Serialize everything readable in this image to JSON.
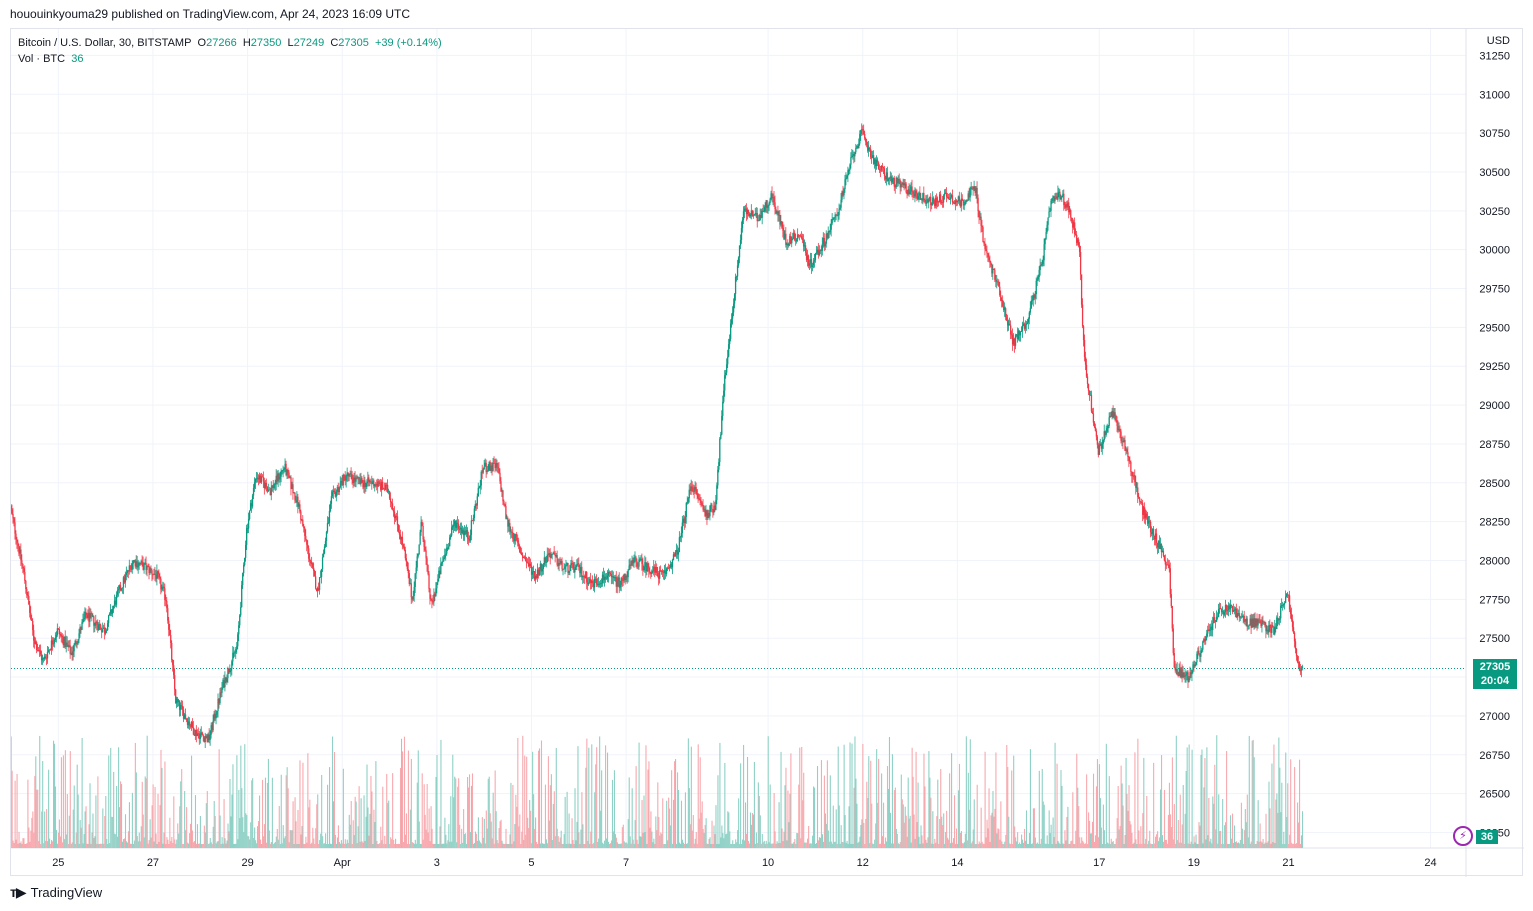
{
  "header": {
    "published_text": "hououinkyouma29 published on TradingView.com, Apr 24, 2023 16:09 UTC"
  },
  "legend": {
    "symbol": "Bitcoin / U.S. Dollar, 30, BITSTAMP",
    "o_label": "O",
    "o_value": "27266",
    "h_label": "H",
    "h_value": "27350",
    "l_label": "L",
    "l_value": "27249",
    "c_label": "C",
    "c_value": "27305",
    "change": "+39 (+0.14%)",
    "vol_label": "Vol · BTC",
    "vol_value": "36"
  },
  "price_badge": {
    "price": "27305",
    "countdown": "20:04"
  },
  "volume_badge": "36",
  "footer": {
    "brand": "TradingView",
    "logo": "tradingview-logo-icon"
  },
  "colors": {
    "up": "#089981",
    "down": "#f23645",
    "vol_up": "#8fd1c6",
    "vol_down": "#f7a9ae",
    "grid": "#f0f3fa"
  },
  "chart_data": {
    "type": "candlestick",
    "interval": "30",
    "exchange": "BITSTAMP",
    "currency_label": "USD",
    "y_ticks": [
      26250,
      26500,
      26750,
      27000,
      27250,
      27500,
      27750,
      28000,
      28250,
      28500,
      28750,
      29000,
      29250,
      29500,
      29750,
      30000,
      30250,
      30500,
      30750,
      31000,
      31250
    ],
    "ylim": [
      26150,
      31420
    ],
    "x_ticks": [
      {
        "label": "25",
        "d": 25.5
      },
      {
        "label": "27",
        "d": 27.5
      },
      {
        "label": "29",
        "d": 29.5
      },
      {
        "label": "Apr",
        "d": 31.5
      },
      {
        "label": "3",
        "d": 33.5
      },
      {
        "label": "5",
        "d": 35.5
      },
      {
        "label": "7",
        "d": 37.5
      },
      {
        "label": "10",
        "d": 40.5
      },
      {
        "label": "12",
        "d": 42.5
      },
      {
        "label": "14",
        "d": 44.5
      },
      {
        "label": "17",
        "d": 47.5
      },
      {
        "label": "19",
        "d": 49.5
      },
      {
        "label": "21",
        "d": 51.5
      },
      {
        "label": "24",
        "d": 54.5
      }
    ],
    "last_price": 27305,
    "price_path": [
      [
        24.5,
        28350
      ],
      [
        24.8,
        27900
      ],
      [
        25.0,
        27500
      ],
      [
        25.2,
        27350
      ],
      [
        25.5,
        27550
      ],
      [
        25.8,
        27400
      ],
      [
        26.1,
        27650
      ],
      [
        26.5,
        27550
      ],
      [
        26.8,
        27800
      ],
      [
        27.1,
        28000
      ],
      [
        27.4,
        27950
      ],
      [
        27.6,
        27900
      ],
      [
        27.8,
        27750
      ],
      [
        28.0,
        27100
      ],
      [
        28.4,
        26900
      ],
      [
        28.7,
        26850
      ],
      [
        29.0,
        27200
      ],
      [
        29.3,
        27450
      ],
      [
        29.5,
        28200
      ],
      [
        29.7,
        28550
      ],
      [
        30.0,
        28450
      ],
      [
        30.3,
        28600
      ],
      [
        30.6,
        28350
      ],
      [
        30.8,
        28050
      ],
      [
        31.0,
        27800
      ],
      [
        31.3,
        28400
      ],
      [
        31.6,
        28550
      ],
      [
        31.9,
        28500
      ],
      [
        32.2,
        28500
      ],
      [
        32.5,
        28450
      ],
      [
        32.8,
        28100
      ],
      [
        33.0,
        27750
      ],
      [
        33.2,
        28250
      ],
      [
        33.4,
        27700
      ],
      [
        33.6,
        27950
      ],
      [
        33.9,
        28250
      ],
      [
        34.2,
        28150
      ],
      [
        34.5,
        28600
      ],
      [
        34.8,
        28600
      ],
      [
        35.0,
        28250
      ],
      [
        35.3,
        28050
      ],
      [
        35.6,
        27900
      ],
      [
        35.9,
        28050
      ],
      [
        36.2,
        27950
      ],
      [
        36.5,
        27950
      ],
      [
        36.8,
        27850
      ],
      [
        37.1,
        27900
      ],
      [
        37.4,
        27850
      ],
      [
        37.7,
        28000
      ],
      [
        38.0,
        27950
      ],
      [
        38.3,
        27900
      ],
      [
        38.6,
        28050
      ],
      [
        38.9,
        28500
      ],
      [
        39.2,
        28300
      ],
      [
        39.4,
        28350
      ],
      [
        39.6,
        29150
      ],
      [
        39.8,
        29700
      ],
      [
        40.0,
        30250
      ],
      [
        40.3,
        30200
      ],
      [
        40.6,
        30350
      ],
      [
        40.9,
        30050
      ],
      [
        41.2,
        30100
      ],
      [
        41.4,
        29900
      ],
      [
        41.7,
        30050
      ],
      [
        42.0,
        30250
      ],
      [
        42.3,
        30600
      ],
      [
        42.5,
        30750
      ],
      [
        42.8,
        30550
      ],
      [
        43.1,
        30450
      ],
      [
        43.4,
        30400
      ],
      [
        43.7,
        30350
      ],
      [
        44.0,
        30300
      ],
      [
        44.3,
        30350
      ],
      [
        44.6,
        30300
      ],
      [
        44.9,
        30400
      ],
      [
        45.1,
        30000
      ],
      [
        45.4,
        29750
      ],
      [
        45.7,
        29400
      ],
      [
        46.0,
        29550
      ],
      [
        46.3,
        29900
      ],
      [
        46.5,
        30300
      ],
      [
        46.7,
        30350
      ],
      [
        46.9,
        30250
      ],
      [
        47.1,
        30000
      ],
      [
        47.2,
        29300
      ],
      [
        47.5,
        28700
      ],
      [
        47.8,
        28950
      ],
      [
        48.1,
        28700
      ],
      [
        48.4,
        28350
      ],
      [
        48.7,
        28150
      ],
      [
        49.0,
        27950
      ],
      [
        49.1,
        27300
      ],
      [
        49.4,
        27250
      ],
      [
        49.7,
        27450
      ],
      [
        50.0,
        27650
      ],
      [
        50.3,
        27700
      ],
      [
        50.6,
        27600
      ],
      [
        50.9,
        27600
      ],
      [
        51.2,
        27550
      ],
      [
        51.5,
        27800
      ],
      [
        51.7,
        27350
      ],
      [
        51.8,
        27300
      ]
    ]
  }
}
